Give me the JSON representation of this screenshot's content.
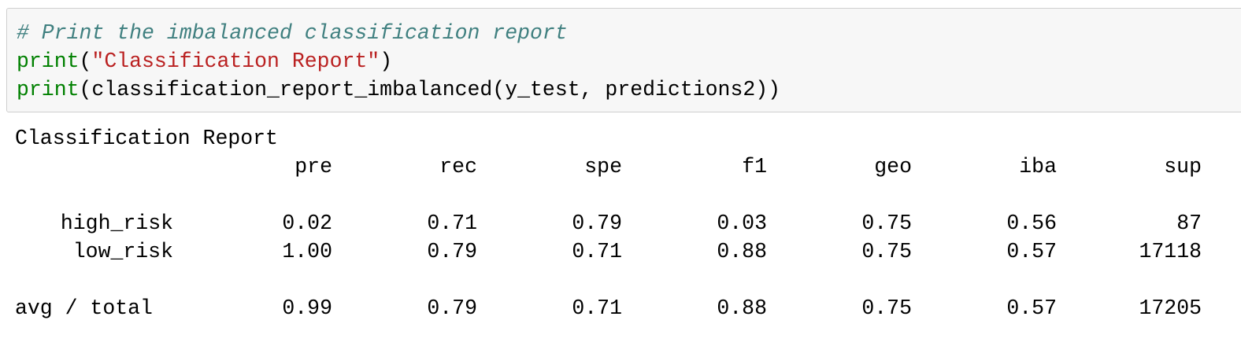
{
  "code_cell": {
    "comment": "# Print the imbalanced classification report",
    "line2": {
      "fn": "print",
      "open": "(",
      "string": "\"Classification Report\"",
      "close": ")"
    },
    "line3": {
      "fn": "print",
      "rest": "(classification_report_imbalanced(y_test, predictions2))"
    }
  },
  "output": {
    "title": "Classification Report",
    "headers": [
      "pre",
      "rec",
      "spe",
      "f1",
      "geo",
      "iba",
      "sup"
    ],
    "rows": [
      {
        "label": "high_risk",
        "values": [
          "0.02",
          "0.71",
          "0.79",
          "0.03",
          "0.75",
          "0.56",
          "87"
        ]
      },
      {
        "label": "low_risk",
        "values": [
          "1.00",
          "0.79",
          "0.71",
          "0.88",
          "0.75",
          "0.57",
          "17118"
        ]
      },
      {
        "label": "avg / total",
        "values": [
          "0.99",
          "0.79",
          "0.71",
          "0.88",
          "0.75",
          "0.57",
          "17205"
        ]
      }
    ]
  },
  "colors": {
    "comment": "#408080",
    "builtin": "#008000",
    "string": "#ba2121",
    "cell_background": "#f7f7f7",
    "cell_border": "#cfcfcf"
  }
}
